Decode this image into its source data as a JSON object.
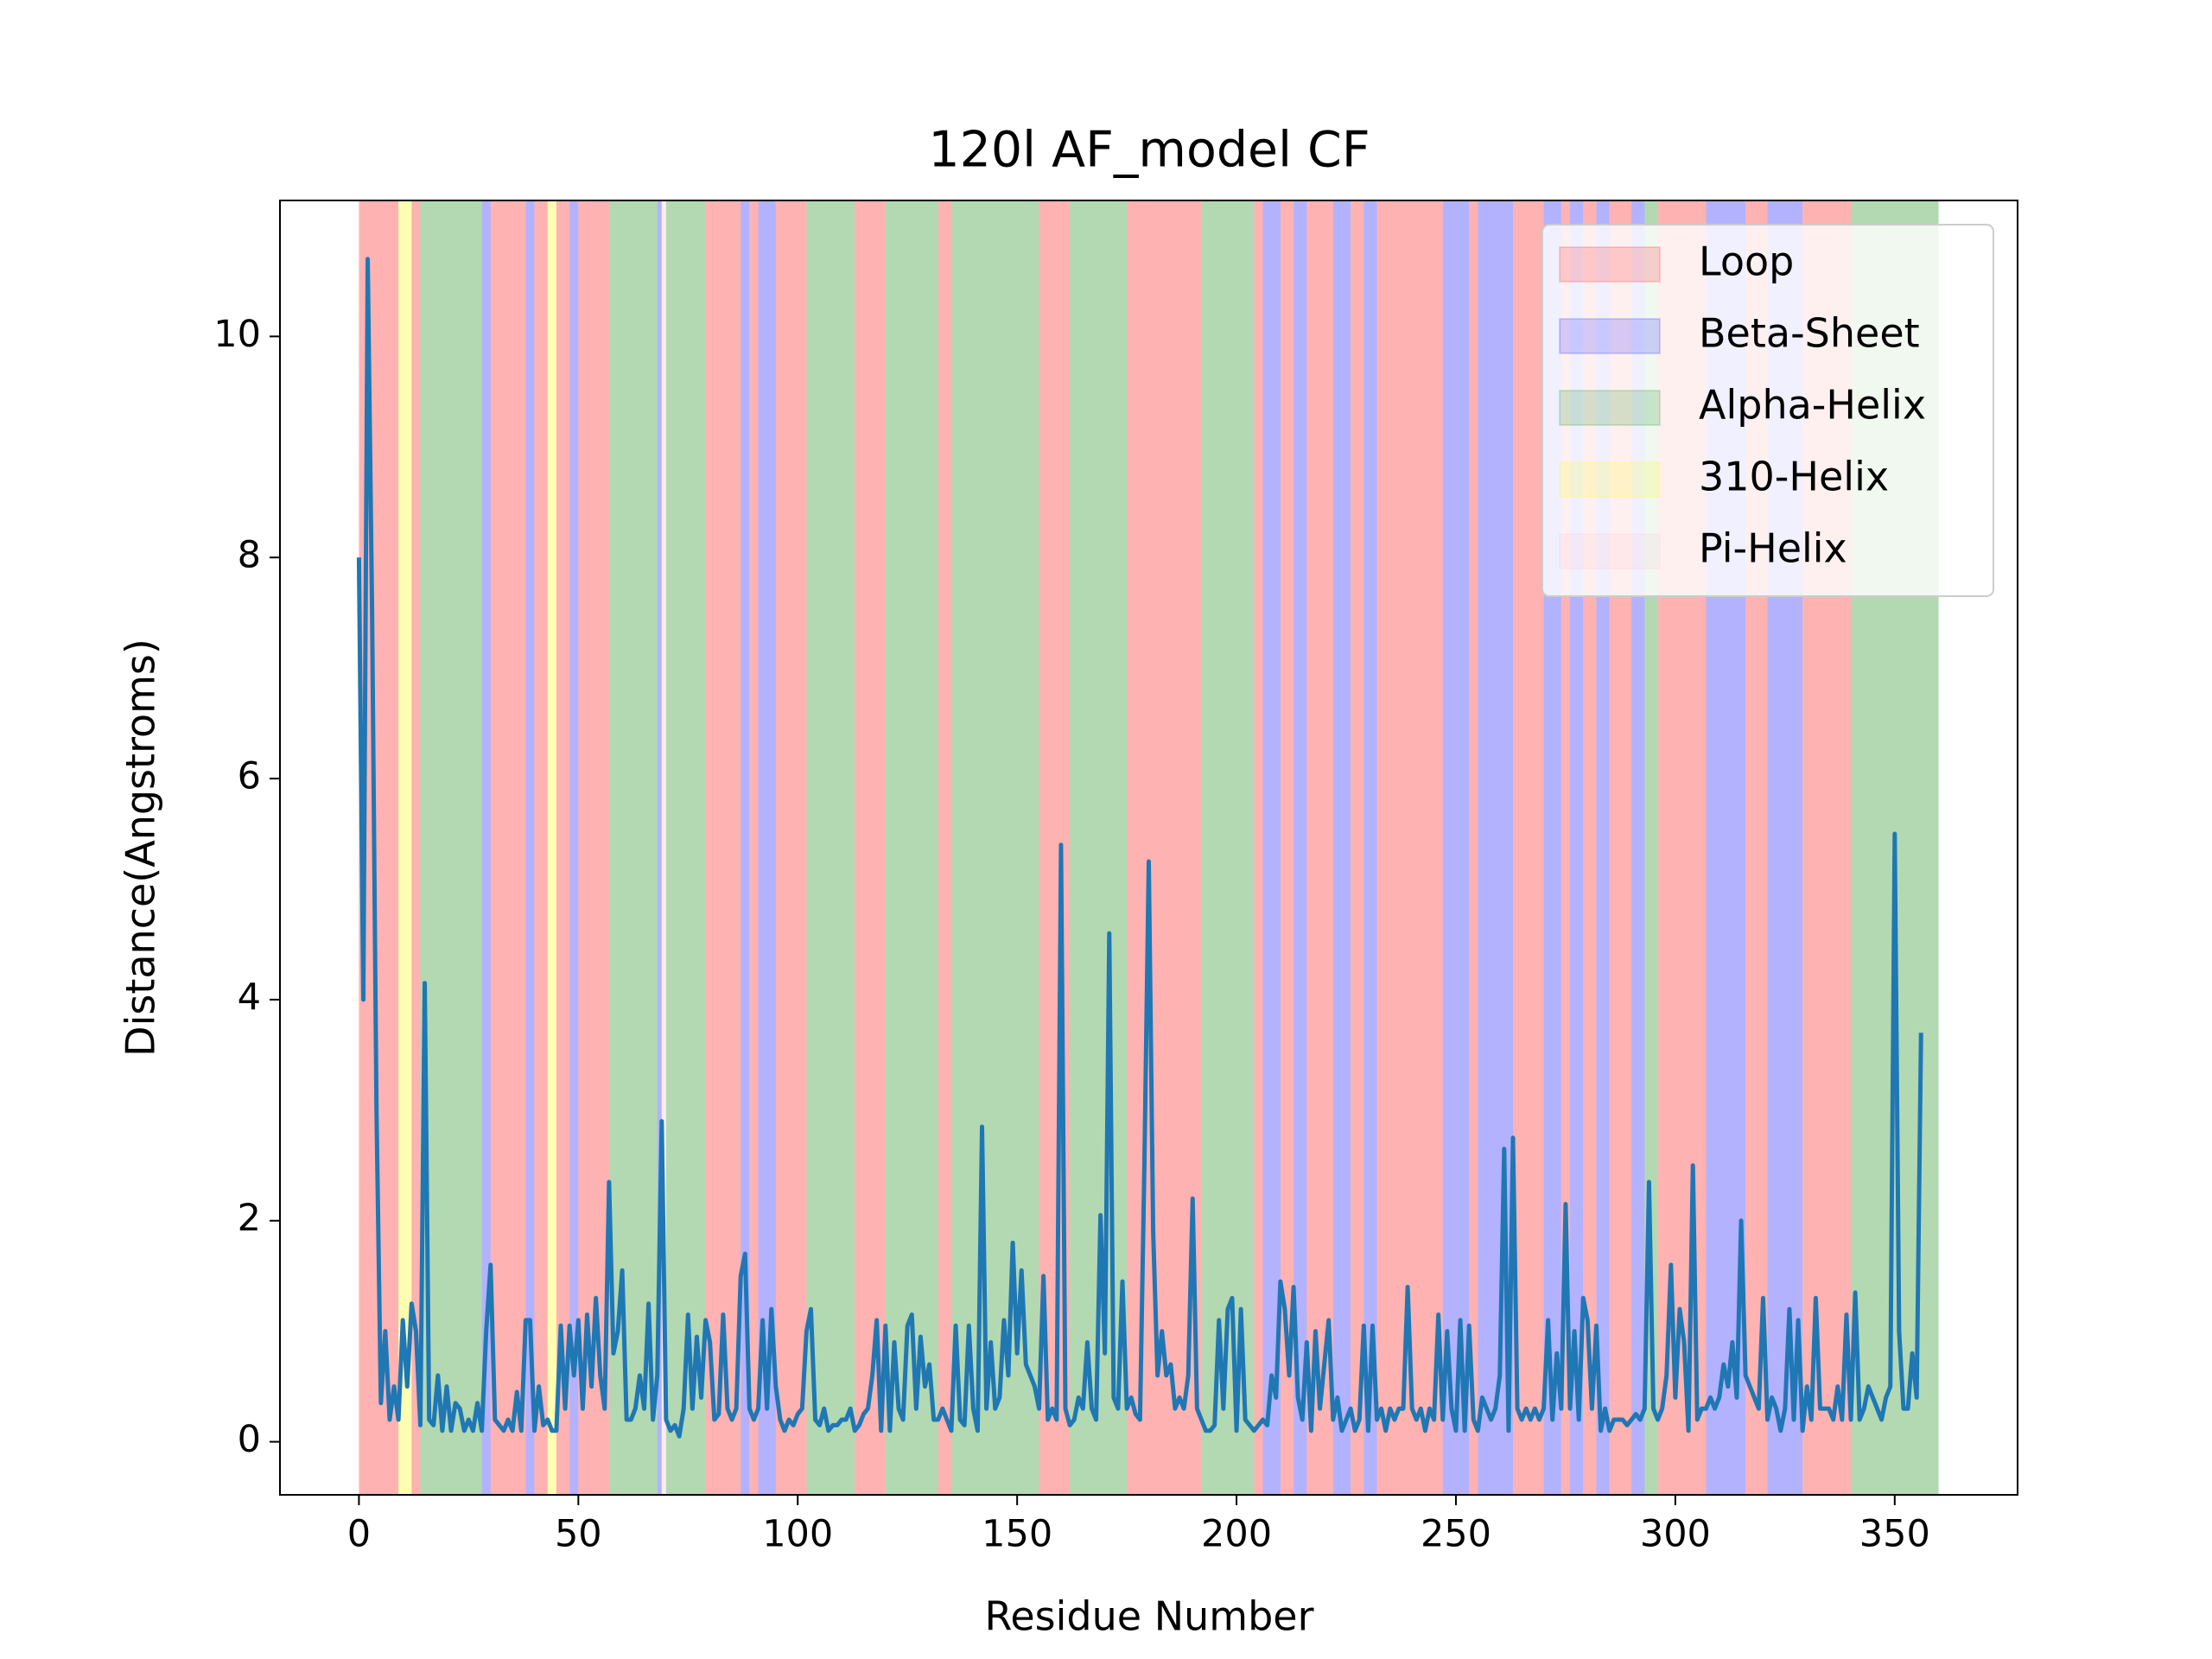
{
  "chart_data": {
    "type": "line",
    "title": "120l AF_model CF",
    "xlabel": "Residue Number",
    "ylabel": "Distance(Angstroms)",
    "xlim": [
      -18,
      378
    ],
    "xticks": [
      0,
      50,
      100,
      150,
      200,
      250,
      300,
      350
    ],
    "ylim": [
      -0.48,
      11.23
    ],
    "yticks": [
      0,
      2,
      4,
      6,
      8,
      10
    ],
    "legend_position": "upper right",
    "span_alpha": 0.3,
    "legend": [
      {
        "name": "Loop",
        "color": "#ff0000"
      },
      {
        "name": "Beta-Sheet",
        "color": "#0000ff"
      },
      {
        "name": "Alpha-Helix",
        "color": "#008000"
      },
      {
        "name": "310-Helix",
        "color": "#ffff00"
      },
      {
        "name": "Pi-Helix",
        "color": "#ffc0cb"
      }
    ],
    "spans": [
      {
        "start": 0,
        "end": 9,
        "kind": 0
      },
      {
        "start": 9,
        "end": 12,
        "kind": 3
      },
      {
        "start": 12,
        "end": 14,
        "kind": 0
      },
      {
        "start": 14,
        "end": 28,
        "kind": 2
      },
      {
        "start": 28,
        "end": 30,
        "kind": 1
      },
      {
        "start": 30,
        "end": 38,
        "kind": 0
      },
      {
        "start": 38,
        "end": 40,
        "kind": 1
      },
      {
        "start": 40,
        "end": 43,
        "kind": 0
      },
      {
        "start": 43,
        "end": 45,
        "kind": 3
      },
      {
        "start": 45,
        "end": 48,
        "kind": 0
      },
      {
        "start": 48,
        "end": 50,
        "kind": 1
      },
      {
        "start": 50,
        "end": 57,
        "kind": 0
      },
      {
        "start": 57,
        "end": 68,
        "kind": 2
      },
      {
        "start": 68,
        "end": 69,
        "kind": 1
      },
      {
        "start": 69,
        "end": 70,
        "kind": 4
      },
      {
        "start": 70,
        "end": 79,
        "kind": 2
      },
      {
        "start": 79,
        "end": 87,
        "kind": 0
      },
      {
        "start": 87,
        "end": 89,
        "kind": 1
      },
      {
        "start": 89,
        "end": 91,
        "kind": 0
      },
      {
        "start": 91,
        "end": 95,
        "kind": 1
      },
      {
        "start": 95,
        "end": 102,
        "kind": 0
      },
      {
        "start": 102,
        "end": 113,
        "kind": 2
      },
      {
        "start": 113,
        "end": 120,
        "kind": 0
      },
      {
        "start": 120,
        "end": 132,
        "kind": 2
      },
      {
        "start": 132,
        "end": 135,
        "kind": 0
      },
      {
        "start": 135,
        "end": 155,
        "kind": 2
      },
      {
        "start": 155,
        "end": 162,
        "kind": 0
      },
      {
        "start": 162,
        "end": 175,
        "kind": 2
      },
      {
        "start": 175,
        "end": 192,
        "kind": 0
      },
      {
        "start": 192,
        "end": 204,
        "kind": 2
      },
      {
        "start": 204,
        "end": 206,
        "kind": 0
      },
      {
        "start": 206,
        "end": 210,
        "kind": 1
      },
      {
        "start": 210,
        "end": 213,
        "kind": 0
      },
      {
        "start": 213,
        "end": 216,
        "kind": 1
      },
      {
        "start": 216,
        "end": 222,
        "kind": 0
      },
      {
        "start": 222,
        "end": 226,
        "kind": 1
      },
      {
        "start": 226,
        "end": 229,
        "kind": 0
      },
      {
        "start": 229,
        "end": 232,
        "kind": 1
      },
      {
        "start": 232,
        "end": 247,
        "kind": 0
      },
      {
        "start": 247,
        "end": 253,
        "kind": 1
      },
      {
        "start": 253,
        "end": 255,
        "kind": 0
      },
      {
        "start": 255,
        "end": 263,
        "kind": 1
      },
      {
        "start": 263,
        "end": 270,
        "kind": 0
      },
      {
        "start": 270,
        "end": 274,
        "kind": 1
      },
      {
        "start": 274,
        "end": 276,
        "kind": 0
      },
      {
        "start": 276,
        "end": 279,
        "kind": 1
      },
      {
        "start": 279,
        "end": 282,
        "kind": 0
      },
      {
        "start": 282,
        "end": 285,
        "kind": 1
      },
      {
        "start": 285,
        "end": 290,
        "kind": 0
      },
      {
        "start": 290,
        "end": 293,
        "kind": 1
      },
      {
        "start": 293,
        "end": 296,
        "kind": 2
      },
      {
        "start": 296,
        "end": 307,
        "kind": 0
      },
      {
        "start": 307,
        "end": 316,
        "kind": 1
      },
      {
        "start": 316,
        "end": 321,
        "kind": 0
      },
      {
        "start": 321,
        "end": 329,
        "kind": 1
      },
      {
        "start": 329,
        "end": 340,
        "kind": 0
      },
      {
        "start": 340,
        "end": 360,
        "kind": 2
      }
    ],
    "x": [
      0,
      1,
      2,
      3,
      4,
      5,
      6,
      7,
      8,
      9,
      10,
      11,
      12,
      13,
      14,
      15,
      16,
      17,
      18,
      19,
      20,
      21,
      22,
      23,
      24,
      25,
      26,
      27,
      28,
      29,
      30,
      31,
      32,
      33,
      34,
      35,
      36,
      37,
      38,
      39,
      40,
      41,
      42,
      43,
      44,
      45,
      46,
      47,
      48,
      49,
      50,
      51,
      52,
      53,
      54,
      55,
      56,
      57,
      58,
      59,
      60,
      61,
      62,
      63,
      64,
      65,
      66,
      67,
      68,
      69,
      70,
      71,
      72,
      73,
      74,
      75,
      76,
      77,
      78,
      79,
      80,
      81,
      82,
      83,
      84,
      85,
      86,
      87,
      88,
      89,
      90,
      91,
      92,
      93,
      94,
      95,
      96,
      97,
      98,
      99,
      100,
      101,
      102,
      103,
      104,
      105,
      106,
      107,
      108,
      109,
      110,
      111,
      112,
      113,
      114,
      115,
      116,
      117,
      118,
      119,
      120,
      121,
      122,
      123,
      124,
      125,
      126,
      127,
      128,
      129,
      130,
      131,
      132,
      133,
      134,
      135,
      136,
      137,
      138,
      139,
      140,
      141,
      142,
      143,
      144,
      145,
      146,
      147,
      148,
      149,
      150,
      151,
      152,
      153,
      154,
      155,
      156,
      157,
      158,
      159,
      160,
      161,
      162,
      163,
      164,
      165,
      166,
      167,
      168,
      169,
      170,
      171,
      172,
      173,
      174,
      175,
      176,
      177,
      178,
      179,
      180,
      181,
      182,
      183,
      184,
      185,
      186,
      187,
      188,
      189,
      190,
      191,
      192,
      193,
      194,
      195,
      196,
      197,
      198,
      199,
      200,
      201,
      202,
      203,
      204,
      205,
      206,
      207,
      208,
      209,
      210,
      211,
      212,
      213,
      214,
      215,
      216,
      217,
      218,
      219,
      220,
      221,
      222,
      223,
      224,
      225,
      226,
      227,
      228,
      229,
      230,
      231,
      232,
      233,
      234,
      235,
      236,
      237,
      238,
      239,
      240,
      241,
      242,
      243,
      244,
      245,
      246,
      247,
      248,
      249,
      250,
      251,
      252,
      253,
      254,
      255,
      256,
      257,
      258,
      259,
      260,
      261,
      262,
      263,
      264,
      265,
      266,
      267,
      268,
      269,
      270,
      271,
      272,
      273,
      274,
      275,
      276,
      277,
      278,
      279,
      280,
      281,
      282,
      283,
      284,
      285,
      286,
      287,
      288,
      289,
      290,
      291,
      292,
      293,
      294,
      295,
      296,
      297,
      298,
      299,
      300,
      301,
      302,
      303,
      304,
      305,
      306,
      307,
      308,
      309,
      310,
      311,
      312,
      313,
      314,
      315,
      316,
      317,
      318,
      319,
      320,
      321,
      322,
      323,
      324,
      325,
      326,
      327,
      328,
      329,
      330,
      331,
      332,
      333,
      334,
      335,
      336,
      337,
      338,
      339,
      340,
      341,
      342,
      343,
      344,
      345,
      346,
      347,
      348,
      349,
      350,
      351,
      352,
      353,
      354,
      355,
      356
    ],
    "series": [
      {
        "name": "distance",
        "color": "#1f77b4",
        "values": [
          8.0,
          4.0,
          10.7,
          7.5,
          3.0,
          0.35,
          1.0,
          0.2,
          0.5,
          0.2,
          1.1,
          0.5,
          1.25,
          1.0,
          0.15,
          4.15,
          0.2,
          0.15,
          0.6,
          0.1,
          0.5,
          0.1,
          0.35,
          0.3,
          0.1,
          0.2,
          0.1,
          0.35,
          0.1,
          1.0,
          1.6,
          0.2,
          0.15,
          0.1,
          0.2,
          0.1,
          0.45,
          0.1,
          1.1,
          1.1,
          0.1,
          0.5,
          0.15,
          0.2,
          0.1,
          0.1,
          1.05,
          0.3,
          1.05,
          0.6,
          1.1,
          0.3,
          1.15,
          0.5,
          1.3,
          0.6,
          0.3,
          2.35,
          0.8,
          1.0,
          1.55,
          0.2,
          0.2,
          0.3,
          0.6,
          0.3,
          1.25,
          0.2,
          0.6,
          2.9,
          0.2,
          0.1,
          0.15,
          0.05,
          0.3,
          1.15,
          0.3,
          0.95,
          0.4,
          1.1,
          0.9,
          0.2,
          0.25,
          1.15,
          0.3,
          0.2,
          0.3,
          1.5,
          1.7,
          0.3,
          0.2,
          0.3,
          1.1,
          0.3,
          1.2,
          0.5,
          0.2,
          0.1,
          0.2,
          0.15,
          0.25,
          0.3,
          1.0,
          1.2,
          0.2,
          0.15,
          0.3,
          0.1,
          0.15,
          0.15,
          0.2,
          0.2,
          0.3,
          0.1,
          0.15,
          0.25,
          0.3,
          0.6,
          1.1,
          0.1,
          1.05,
          0.1,
          0.9,
          0.3,
          0.2,
          1.05,
          1.15,
          0.3,
          0.95,
          0.5,
          0.7,
          0.2,
          0.2,
          0.3,
          0.2,
          0.1,
          1.05,
          0.2,
          0.15,
          1.05,
          0.3,
          0.1,
          2.85,
          0.3,
          0.9,
          0.3,
          0.4,
          1.1,
          0.6,
          1.8,
          0.8,
          1.55,
          0.7,
          0.6,
          0.5,
          0.3,
          1.5,
          0.2,
          0.3,
          0.2,
          5.4,
          0.3,
          0.15,
          0.2,
          0.4,
          0.3,
          0.9,
          0.3,
          0.2,
          2.05,
          0.8,
          4.6,
          0.4,
          0.3,
          1.45,
          0.3,
          0.4,
          0.25,
          0.2,
          2.5,
          5.25,
          1.9,
          0.6,
          1.0,
          0.6,
          0.7,
          0.3,
          0.4,
          0.3,
          0.6,
          2.2,
          0.3,
          0.2,
          0.1,
          0.1,
          0.15,
          1.1,
          0.3,
          1.2,
          1.3,
          0.1,
          1.2,
          0.2,
          0.15,
          0.1,
          0.15,
          0.2,
          0.15,
          0.6,
          0.4,
          1.45,
          1.2,
          0.6,
          1.4,
          0.4,
          0.2,
          0.9,
          0.1,
          1.0,
          0.3,
          0.7,
          1.1,
          0.2,
          0.4,
          0.1,
          0.2,
          0.3,
          0.1,
          0.2,
          1.05,
          0.1,
          1.05,
          0.2,
          0.3,
          0.1,
          0.3,
          0.2,
          0.3,
          0.3,
          1.4,
          0.3,
          0.2,
          0.3,
          0.1,
          0.3,
          0.2,
          1.15,
          0.2,
          1.0,
          0.3,
          0.1,
          1.1,
          0.1,
          1.05,
          0.2,
          0.1,
          0.4,
          0.3,
          0.2,
          0.3,
          0.6,
          2.65,
          0.1,
          2.75,
          0.3,
          0.2,
          0.3,
          0.2,
          0.3,
          0.2,
          0.3,
          1.1,
          0.2,
          0.8,
          0.3,
          2.15,
          0.3,
          1.0,
          0.2,
          1.3,
          1.1,
          0.3,
          1.05,
          0.1,
          0.3,
          0.1,
          0.2,
          0.2,
          0.2,
          0.15,
          0.2,
          0.25,
          0.2,
          0.3,
          2.35,
          0.3,
          0.2,
          0.3,
          0.6,
          1.6,
          0.4,
          1.2,
          0.9,
          0.1,
          2.5,
          0.2,
          0.3,
          0.3,
          0.4,
          0.3,
          0.4,
          0.7,
          0.5,
          0.9,
          0.4,
          2.0,
          0.6,
          0.5,
          0.4,
          0.3,
          1.3,
          0.2,
          0.4,
          0.3,
          0.1,
          0.3,
          1.2,
          0.2,
          1.1,
          0.1,
          0.5,
          0.2,
          1.3,
          0.3,
          0.3,
          0.3,
          0.2,
          0.5,
          0.2,
          1.15,
          0.2,
          1.35,
          0.2,
          0.3,
          0.5,
          0.4,
          0.3,
          0.2,
          0.4,
          0.5,
          5.5,
          1.0,
          0.3,
          0.3,
          0.8,
          0.4,
          3.7
        ]
      }
    ]
  }
}
